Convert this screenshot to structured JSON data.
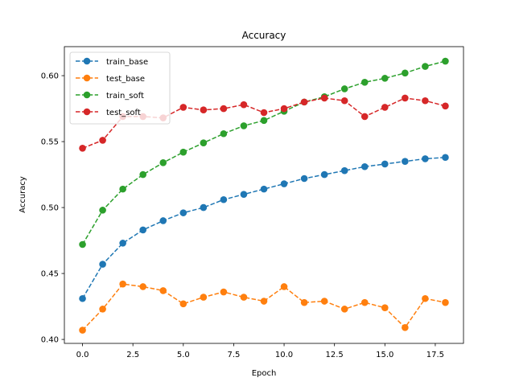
{
  "chart_data": {
    "type": "line",
    "title": "Accuracy",
    "xlabel": "Epoch",
    "ylabel": "Accuracy",
    "xlim": [
      -0.9,
      18.9
    ],
    "ylim": [
      0.397,
      0.622
    ],
    "grid": false,
    "legend_position": "top-left",
    "x": [
      0,
      1,
      2,
      3,
      4,
      5,
      6,
      7,
      8,
      9,
      10,
      11,
      12,
      13,
      14,
      15,
      16,
      17,
      18
    ],
    "x_ticks": [
      0.0,
      2.5,
      5.0,
      7.5,
      10.0,
      12.5,
      15.0,
      17.5
    ],
    "x_tick_labels": [
      "0.0",
      "2.5",
      "5.0",
      "7.5",
      "10.0",
      "12.5",
      "15.0",
      "17.5"
    ],
    "y_ticks": [
      0.4,
      0.45,
      0.5,
      0.55,
      0.6
    ],
    "y_tick_labels": [
      "0.40",
      "0.45",
      "0.50",
      "0.55",
      "0.60"
    ],
    "series": [
      {
        "name": "train_base",
        "color": "#1f77b4",
        "values": [
          0.431,
          0.457,
          0.473,
          0.483,
          0.49,
          0.496,
          0.5,
          0.506,
          0.51,
          0.514,
          0.518,
          0.522,
          0.525,
          0.528,
          0.531,
          0.533,
          0.535,
          0.537,
          0.538
        ]
      },
      {
        "name": "test_base",
        "color": "#ff7f0e",
        "values": [
          0.407,
          0.423,
          0.442,
          0.44,
          0.437,
          0.427,
          0.432,
          0.436,
          0.432,
          0.429,
          0.44,
          0.428,
          0.429,
          0.423,
          0.428,
          0.424,
          0.409,
          0.431,
          0.428
        ]
      },
      {
        "name": "train_soft",
        "color": "#2ca02c",
        "values": [
          0.472,
          0.498,
          0.514,
          0.525,
          0.534,
          0.542,
          0.549,
          0.556,
          0.562,
          0.566,
          0.573,
          0.58,
          0.584,
          0.59,
          0.595,
          0.598,
          0.602,
          0.607,
          0.611
        ]
      },
      {
        "name": "test_soft",
        "color": "#d62728",
        "values": [
          0.545,
          0.551,
          0.569,
          0.569,
          0.568,
          0.576,
          0.574,
          0.575,
          0.578,
          0.572,
          0.575,
          0.58,
          0.583,
          0.581,
          0.569,
          0.576,
          0.583,
          0.581,
          0.577
        ]
      }
    ]
  }
}
